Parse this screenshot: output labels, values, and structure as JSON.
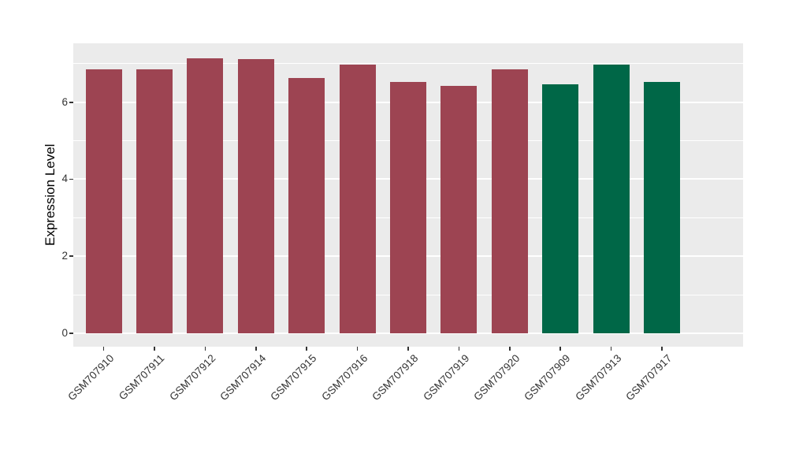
{
  "figure": {
    "background": "#ffffff"
  },
  "chart_data": {
    "type": "bar",
    "title": "",
    "xlabel": "",
    "ylabel": "Expression Level",
    "categories": [
      "GSM707910",
      "GSM707911",
      "GSM707912",
      "GSM707914",
      "GSM707915",
      "GSM707916",
      "GSM707918",
      "GSM707919",
      "GSM707920",
      "GSM707909",
      "GSM707913",
      "GSM707917"
    ],
    "values": [
      6.85,
      6.86,
      7.15,
      7.12,
      6.62,
      6.98,
      6.53,
      6.42,
      6.85,
      6.46,
      6.98,
      6.53
    ],
    "bar_colors": [
      "#9d4452",
      "#9d4452",
      "#9d4452",
      "#9d4452",
      "#9d4452",
      "#9d4452",
      "#9d4452",
      "#9d4452",
      "#9d4452",
      "#006747",
      "#006747",
      "#006747"
    ],
    "group_colors": {
      "red_group": "#9d4452",
      "green_group": "#006747"
    },
    "yticks": [
      0,
      2,
      4,
      6
    ],
    "ytick_labels": [
      "0",
      "2",
      "4",
      "6"
    ],
    "minor_gridlines": [
      1,
      3,
      5,
      7
    ],
    "ylim": [
      -0.35,
      7.53
    ],
    "x_label_rotation": 45,
    "grid": true,
    "legend": "none",
    "panel_background": "#ebebeb",
    "grid_color": "#ffffff",
    "tick_label_color": "#333333"
  }
}
